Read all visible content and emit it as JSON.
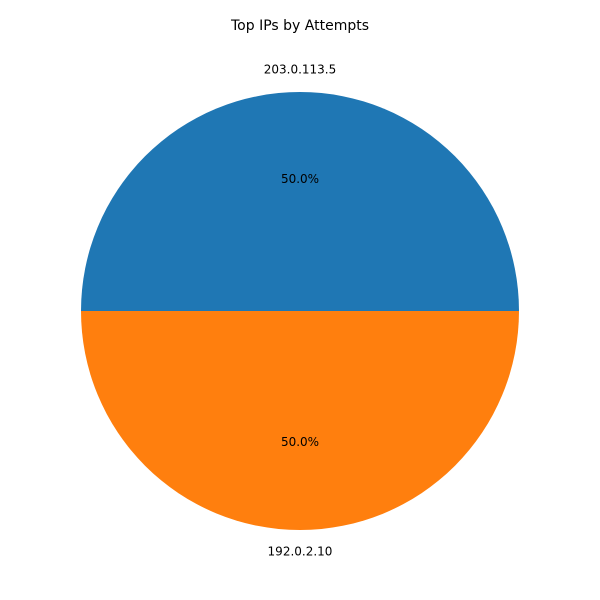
{
  "chart_data": {
    "type": "pie",
    "title": "Top IPs by Attempts",
    "categories": [
      "203.0.113.5",
      "192.0.2.10"
    ],
    "values": [
      1,
      1
    ],
    "percent_labels": [
      "50.0%",
      "50.0%"
    ],
    "colors": [
      "#1f77b4",
      "#ff7f0e"
    ],
    "start_angle_deg": 0,
    "direction": "counterclockwise",
    "legend": "none"
  }
}
